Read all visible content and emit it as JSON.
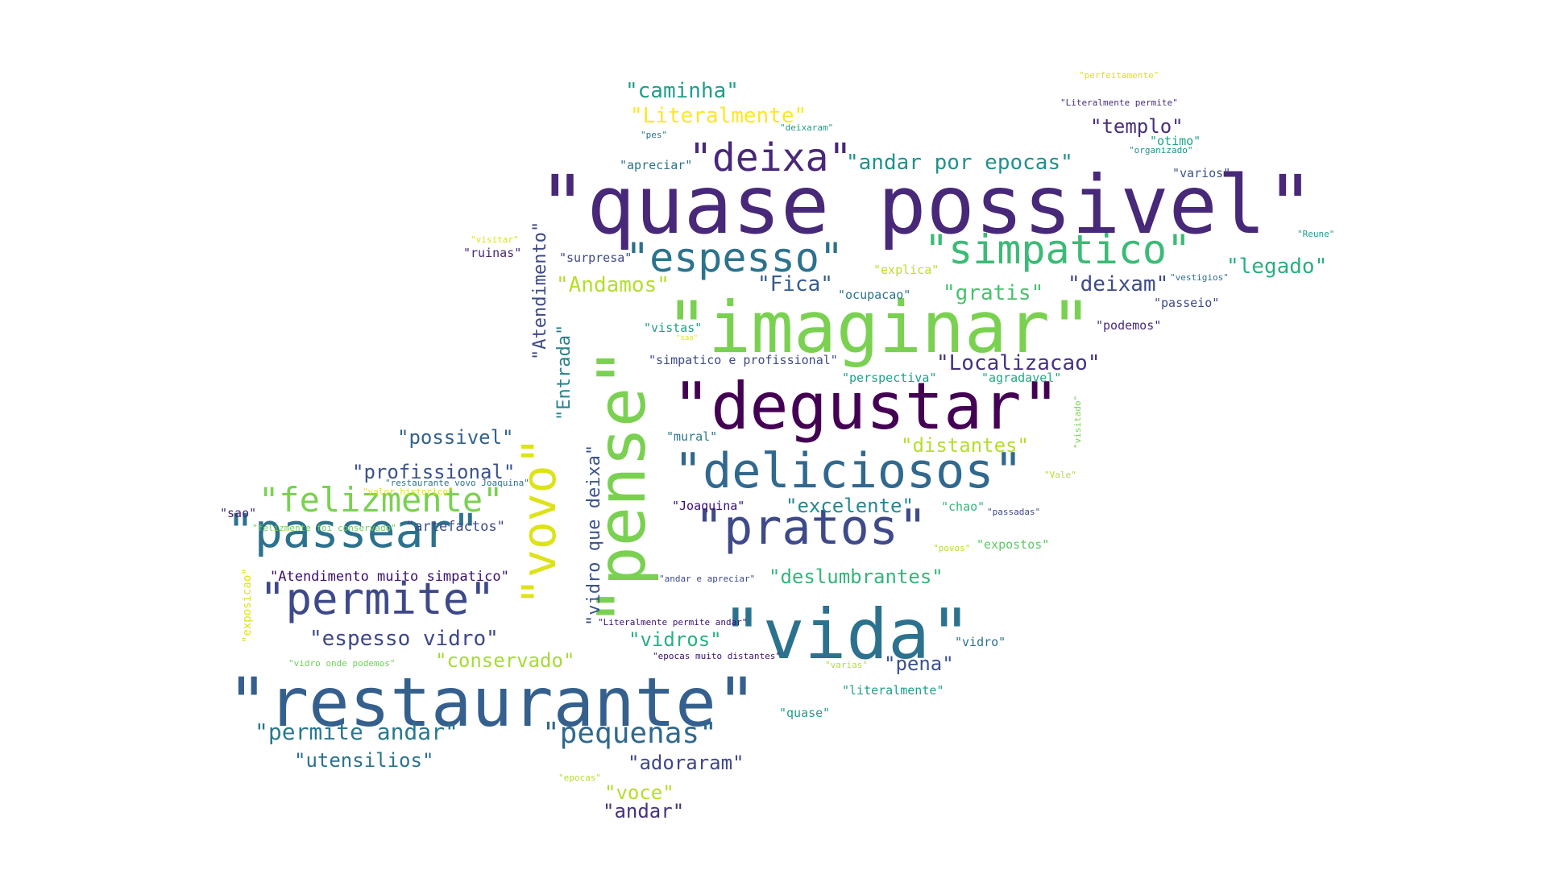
{
  "cloud": {
    "words": [
      {
        "text": "\"quase possivel\"",
        "color": "#482878"
      },
      {
        "text": "\"imaginar\"",
        "color": "#7ad151"
      },
      {
        "text": "\"degustar\"",
        "color": "#440154"
      },
      {
        "text": "\"restaurante\"",
        "color": "#35608d"
      },
      {
        "text": "\"vida\"",
        "color": "#2c728e"
      },
      {
        "text": "\"pense\"",
        "color": "#7ad151"
      },
      {
        "text": "\"vovo\"",
        "color": "#dde318"
      },
      {
        "text": "\"deliciosos\"",
        "color": "#31688e"
      },
      {
        "text": "\"pratos\"",
        "color": "#3e4a89"
      },
      {
        "text": "\"passear\"",
        "color": "#2c728e"
      },
      {
        "text": "\"permite\"",
        "color": "#3e4989"
      },
      {
        "text": "\"simpatico\"",
        "color": "#3bbb75"
      },
      {
        "text": "\"espesso\"",
        "color": "#2c728e"
      },
      {
        "text": "\"deixa\"",
        "color": "#482878"
      },
      {
        "text": "\"felizmente\"",
        "color": "#7ad151"
      },
      {
        "text": "\"pequenas\"",
        "color": "#31688e"
      },
      {
        "text": "\"Atendimento\"",
        "color": "#3e4989"
      },
      {
        "text": "\"Entrada\"",
        "color": "#26828e"
      },
      {
        "text": "\"vidro que deixa\"",
        "color": "#3b528b"
      },
      {
        "text": "\"caminha\"",
        "color": "#1f9e89"
      },
      {
        "text": "\"Literalmente\"",
        "color": "#fde725"
      },
      {
        "text": "\"andar por epocas\"",
        "color": "#21918c"
      },
      {
        "text": "\"Localizacao\"",
        "color": "#46327e"
      },
      {
        "text": "\"deixam\"",
        "color": "#3e4a89"
      },
      {
        "text": "\"legado\"",
        "color": "#2ab07f"
      },
      {
        "text": "\"gratis\"",
        "color": "#4ac16d"
      },
      {
        "text": "\"Andamos\"",
        "color": "#b5de2b"
      },
      {
        "text": "\"Fica\"",
        "color": "#365c8d"
      },
      {
        "text": "\"possivel\"",
        "color": "#33638d"
      },
      {
        "text": "\"profissional\"",
        "color": "#3b528b"
      },
      {
        "text": "\"excelente\"",
        "color": "#23898e"
      },
      {
        "text": "\"distantes\"",
        "color": "#b5de2b"
      },
      {
        "text": "\"deslumbrantes\"",
        "color": "#34b679"
      },
      {
        "text": "\"espesso vidro\"",
        "color": "#3f4788"
      },
      {
        "text": "\"permite andar\"",
        "color": "#2a788e"
      },
      {
        "text": "\"utensilios\"",
        "color": "#2c728e"
      },
      {
        "text": "\"adoraram\"",
        "color": "#3f4788"
      },
      {
        "text": "\"voce\"",
        "color": "#b5de2b"
      },
      {
        "text": "\"andar\"",
        "color": "#46327e"
      },
      {
        "text": "\"conservado\"",
        "color": "#a5db36"
      },
      {
        "text": "\"vidros\"",
        "color": "#2ab07f"
      },
      {
        "text": "\"pena\"",
        "color": "#3b528b"
      },
      {
        "text": "\"templo\"",
        "color": "#472d7b"
      },
      {
        "text": "\"Atendimento muito simpatico\"",
        "color": "#3b0f70"
      },
      {
        "text": "\"artefactos\"",
        "color": "#3e4a89"
      },
      {
        "text": "\"sao\"",
        "color": "#481f70"
      },
      {
        "text": "\"ruinas\"",
        "color": "#482878"
      },
      {
        "text": "\"surpresa\"",
        "color": "#3f4788"
      },
      {
        "text": "\"apreciar\"",
        "color": "#2c728e"
      },
      {
        "text": "\"explica\"",
        "color": "#bddf26"
      },
      {
        "text": "\"ocupacao\"",
        "color": "#2c728e"
      },
      {
        "text": "\"passeio\"",
        "color": "#3e4989"
      },
      {
        "text": "\"podemos\"",
        "color": "#472d7b"
      },
      {
        "text": "\"varios\"",
        "color": "#3b528b"
      },
      {
        "text": "\"otimo\"",
        "color": "#20a486"
      },
      {
        "text": "\"vistas\"",
        "color": "#1f9e89"
      },
      {
        "text": "\"simpatico e profissional\"",
        "color": "#3e4a89"
      },
      {
        "text": "\"perspectiva\"",
        "color": "#1fa188"
      },
      {
        "text": "\"agradavel\"",
        "color": "#22a884"
      },
      {
        "text": "\"mural\"",
        "color": "#2a788e"
      },
      {
        "text": "\"Joaquina\"",
        "color": "#3b0f70"
      },
      {
        "text": "\"chao\"",
        "color": "#35b779"
      },
      {
        "text": "\"expostos\"",
        "color": "#5ec962"
      },
      {
        "text": "\"vidro\"",
        "color": "#2c728e"
      },
      {
        "text": "\"literalmente\"",
        "color": "#1f9e89"
      },
      {
        "text": "\"quase\"",
        "color": "#1f9e89"
      },
      {
        "text": "\"pes\"",
        "color": "#2c728e"
      },
      {
        "text": "\"deixaram\"",
        "color": "#1f9e89"
      },
      {
        "text": "\"perfeitamente\"",
        "color": "#dde318"
      },
      {
        "text": "\"Literalmente permite\"",
        "color": "#472d7b"
      },
      {
        "text": "\"organizado\"",
        "color": "#21918c"
      },
      {
        "text": "\"Reune\"",
        "color": "#1f9e89"
      },
      {
        "text": "\"vestigios\"",
        "color": "#2c728e"
      },
      {
        "text": "\"visitar\"",
        "color": "#dde318"
      },
      {
        "text": "\"sao\"",
        "color": "#dde318"
      },
      {
        "text": "\"visitado\"",
        "color": "#7ad151"
      },
      {
        "text": "\"Vale\"",
        "color": "#b5de2b"
      },
      {
        "text": "\"passadas\"",
        "color": "#3e4989"
      },
      {
        "text": "\"povos\"",
        "color": "#b5de2b"
      },
      {
        "text": "\"andar e apreciar\"",
        "color": "#3e4989"
      },
      {
        "text": "\"Literalmente permite andar\"",
        "color": "#3b0f70"
      },
      {
        "text": "\"epocas muito distantes\"",
        "color": "#3b0f70"
      },
      {
        "text": "\"varias\"",
        "color": "#b5de2b"
      },
      {
        "text": "\"epocas\"",
        "color": "#b5de2b"
      },
      {
        "text": "\"vidro onde podemos\"",
        "color": "#6ece58"
      },
      {
        "text": "\"exposicao\"",
        "color": "#dde318"
      },
      {
        "text": "\"restaurante vovo Joaquina\"",
        "color": "#2c728e"
      },
      {
        "text": "\"valor historico\"",
        "color": "#dde318"
      },
      {
        "text": "\"felizmente foi conservado\"",
        "color": "#6ece58"
      }
    ]
  }
}
